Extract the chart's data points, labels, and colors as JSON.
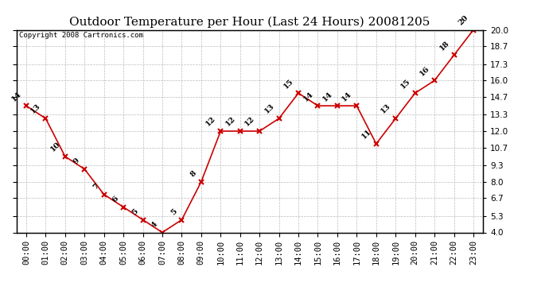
{
  "title": "Outdoor Temperature per Hour (Last 24 Hours) 20081205",
  "copyright_text": "Copyright 2008 Cartronics.com",
  "hours": [
    "00:00",
    "01:00",
    "02:00",
    "03:00",
    "04:00",
    "05:00",
    "06:00",
    "07:00",
    "08:00",
    "09:00",
    "10:00",
    "11:00",
    "12:00",
    "13:00",
    "14:00",
    "15:00",
    "16:00",
    "17:00",
    "18:00",
    "19:00",
    "20:00",
    "21:00",
    "22:00",
    "23:00"
  ],
  "temperatures": [
    14,
    13,
    10,
    9,
    7,
    6,
    5,
    4,
    5,
    8,
    12,
    12,
    12,
    13,
    15,
    14,
    14,
    14,
    11,
    13,
    15,
    16,
    18,
    20
  ],
  "ylim": [
    4.0,
    20.0
  ],
  "yticks": [
    4.0,
    5.3,
    6.7,
    8.0,
    9.3,
    10.7,
    12.0,
    13.3,
    14.7,
    16.0,
    17.3,
    18.7,
    20.0
  ],
  "line_color": "#cc0000",
  "marker": "x",
  "marker_color": "#cc0000",
  "bg_color": "#ffffff",
  "grid_color": "#bbbbbb",
  "title_fontsize": 11,
  "label_fontsize": 7,
  "tick_fontsize": 7.5,
  "copyright_fontsize": 6.5
}
